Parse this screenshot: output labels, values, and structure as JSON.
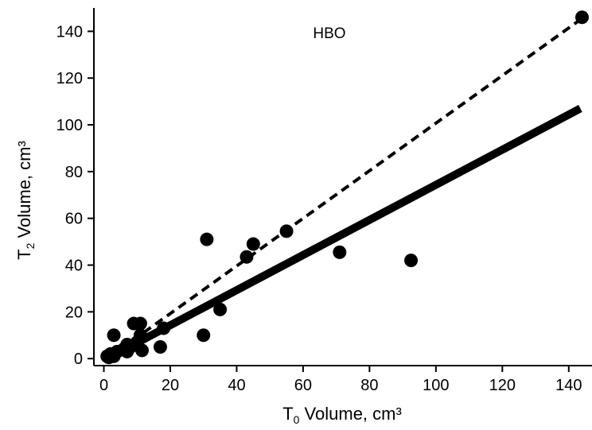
{
  "chart_data": {
    "type": "scatter",
    "annotation": "HBO",
    "xlabel_main": "T",
    "xlabel_sub": "0",
    "xlabel_rest": " Volume, cm³",
    "ylabel_main": "T",
    "ylabel_sub": "2",
    "ylabel_rest": " Volume, cm³",
    "xlim": [
      -3,
      147
    ],
    "ylim": [
      -3,
      150
    ],
    "xticks": [
      0,
      20,
      40,
      60,
      80,
      100,
      120,
      140
    ],
    "yticks": [
      0,
      20,
      40,
      60,
      80,
      100,
      120,
      140
    ],
    "grid": false,
    "points": [
      {
        "x": 1,
        "y": 1
      },
      {
        "x": 2,
        "y": 2
      },
      {
        "x": 1.5,
        "y": 0.5
      },
      {
        "x": 3,
        "y": 1
      },
      {
        "x": 4,
        "y": 3
      },
      {
        "x": 3,
        "y": 10
      },
      {
        "x": 6,
        "y": 4
      },
      {
        "x": 7,
        "y": 6
      },
      {
        "x": 7,
        "y": 3
      },
      {
        "x": 8,
        "y": 5
      },
      {
        "x": 9,
        "y": 15
      },
      {
        "x": 10,
        "y": 7
      },
      {
        "x": 11,
        "y": 15
      },
      {
        "x": 11,
        "y": 10
      },
      {
        "x": 11.5,
        "y": 3.5
      },
      {
        "x": 17,
        "y": 5
      },
      {
        "x": 18,
        "y": 13
      },
      {
        "x": 30,
        "y": 10
      },
      {
        "x": 31,
        "y": 51
      },
      {
        "x": 35,
        "y": 21
      },
      {
        "x": 43,
        "y": 43.5
      },
      {
        "x": 45,
        "y": 49
      },
      {
        "x": 55,
        "y": 54.5
      },
      {
        "x": 71,
        "y": 45.5
      },
      {
        "x": 92.5,
        "y": 42
      },
      {
        "x": 144,
        "y": 146
      }
    ],
    "lines": [
      {
        "style": "solid",
        "x": [
          5,
          143.5
        ],
        "y": [
          3,
          107
        ]
      },
      {
        "style": "dashed",
        "x": [
          5,
          143.5
        ],
        "y": [
          4,
          145
        ]
      }
    ]
  }
}
